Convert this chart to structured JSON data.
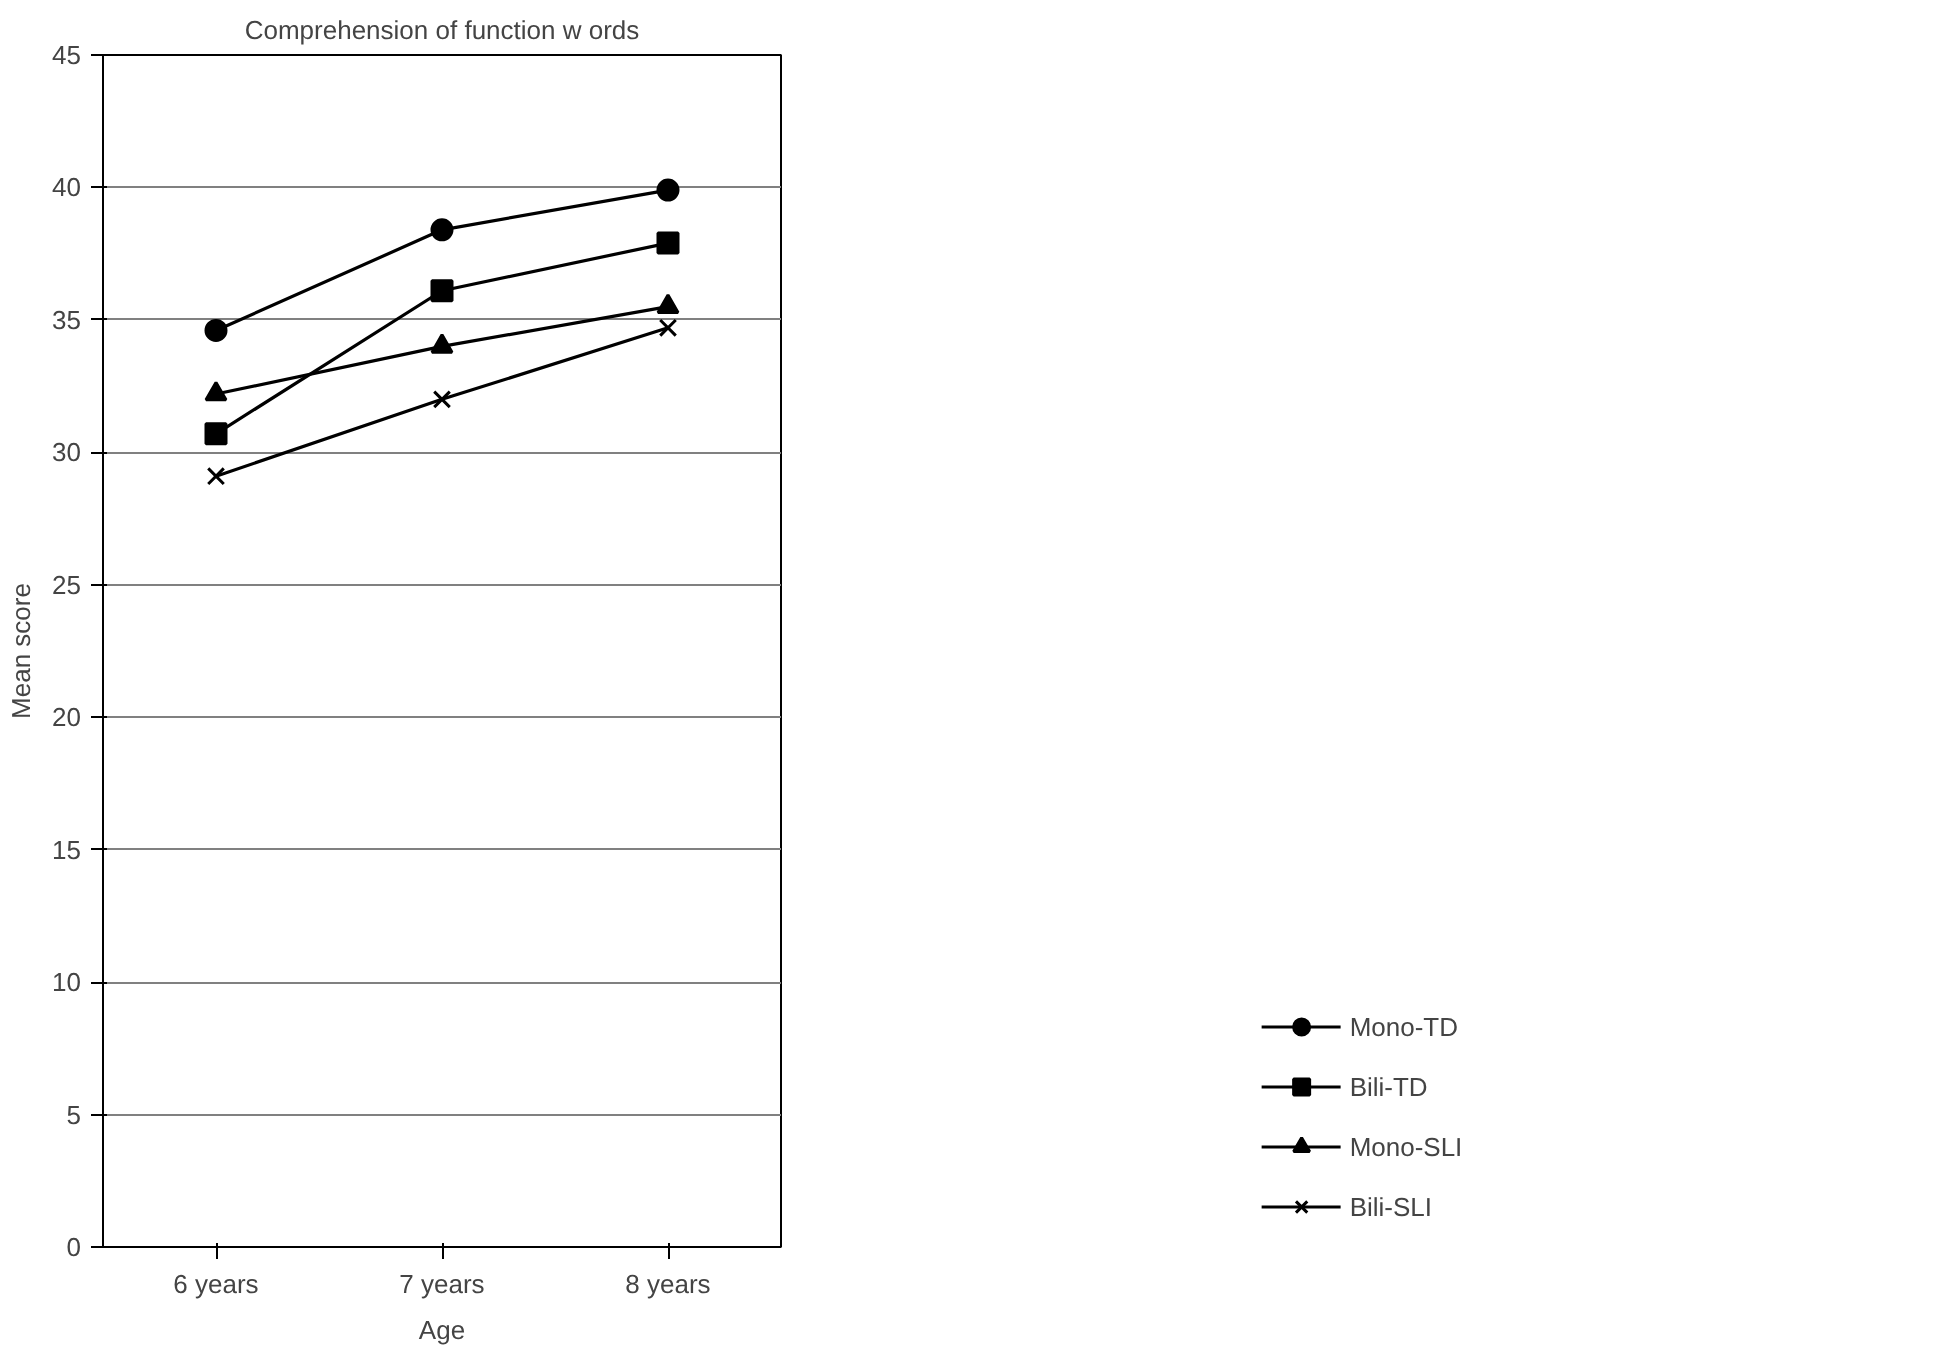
{
  "chart_data": {
    "type": "line",
    "title": "Comprehension of function w ords",
    "xlabel": "Age",
    "ylabel": "Mean score",
    "categories": [
      "6 years",
      "7 years",
      "8 years"
    ],
    "series": [
      {
        "name": "Mono-TD",
        "color": "#000000",
        "marker": "circle",
        "values": [
          34.6,
          38.4,
          39.9
        ]
      },
      {
        "name": "Bili-TD",
        "color": "#000000",
        "marker": "square",
        "values": [
          30.7,
          36.1,
          37.9
        ]
      },
      {
        "name": "Mono-SLI",
        "color": "#000000",
        "marker": "triangle",
        "values": [
          32.2,
          34.0,
          35.5
        ]
      },
      {
        "name": "Bili-SLI",
        "color": "#000000",
        "marker": "cross",
        "values": [
          29.1,
          32.0,
          34.7
        ]
      }
    ],
    "ylim": [
      0,
      45
    ],
    "yticks": [
      0,
      5,
      10,
      15,
      20,
      25,
      30,
      35,
      40,
      45
    ],
    "grid": "y",
    "legend": "right",
    "line_style": "solid"
  }
}
